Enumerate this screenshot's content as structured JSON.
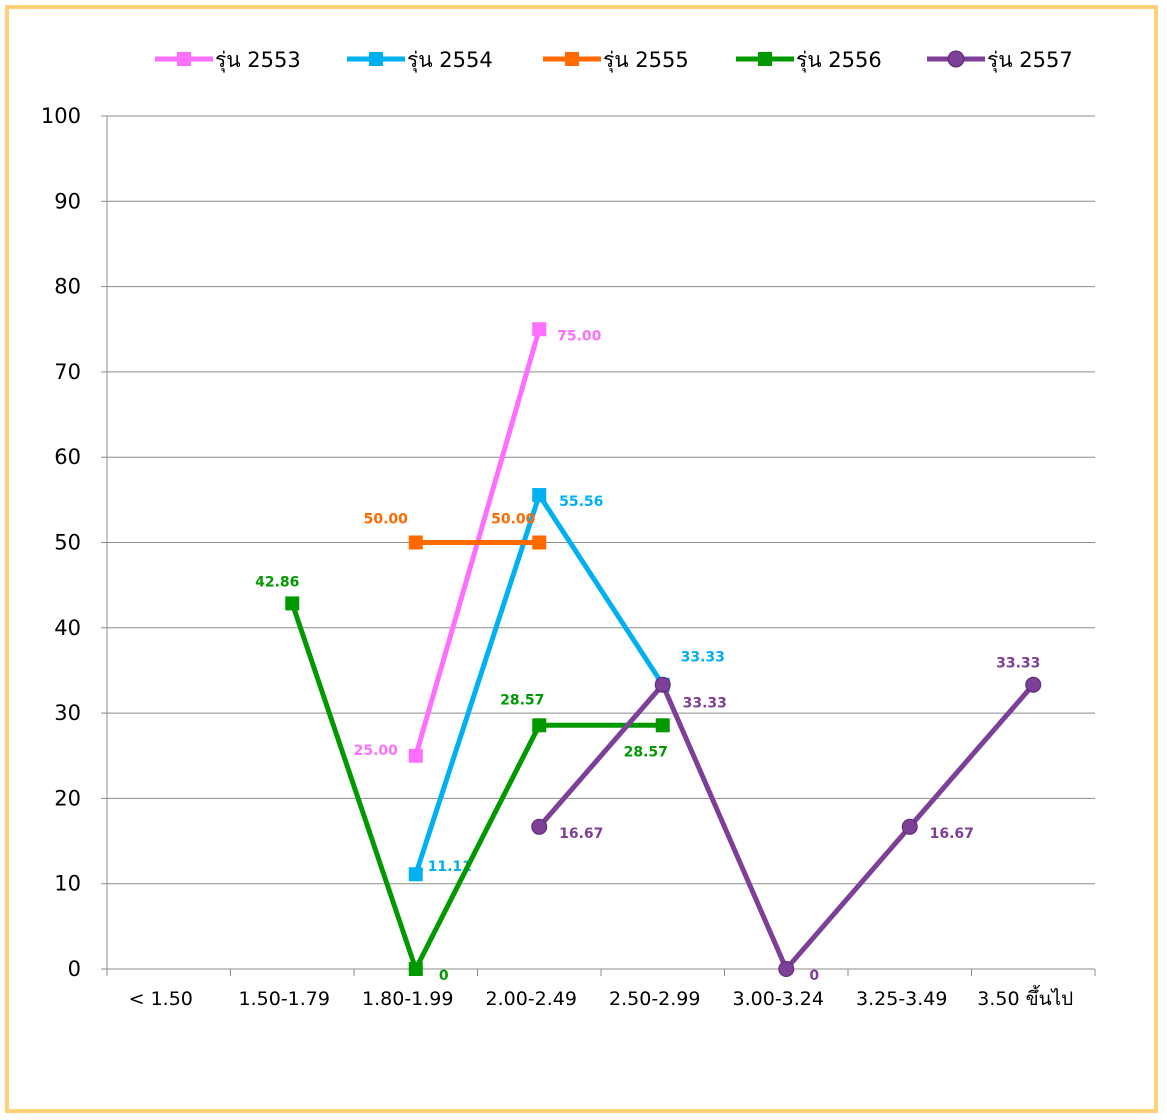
{
  "chart_data": {
    "type": "line",
    "categories": [
      "< 1.50",
      "1.50-1.79",
      "1.80-1.99",
      "2.00-2.49",
      "2.50-2.99",
      "3.00-3.24",
      "3.25-3.49",
      "3.50  ขึ้นไป"
    ],
    "ylim": [
      0,
      100
    ],
    "yticks": [
      0,
      10,
      20,
      30,
      40,
      50,
      60,
      70,
      80,
      90,
      100
    ],
    "grid": true,
    "legend_position": "top",
    "series": [
      {
        "name": "รุ่น 2553",
        "color": "#FF6FFF",
        "marker": "square",
        "values": [
          null,
          null,
          25.0,
          75.0,
          null,
          null,
          null,
          null
        ],
        "labels": [
          null,
          null,
          "25.00",
          "75.00",
          null,
          null,
          null,
          null
        ]
      },
      {
        "name": "รุ่น 2554",
        "color": "#00B0F0",
        "marker": "square",
        "values": [
          null,
          null,
          11.11,
          55.56,
          33.33,
          null,
          null,
          null
        ],
        "labels": [
          null,
          null,
          "11.11",
          "55.56",
          "33.33",
          null,
          null,
          null
        ]
      },
      {
        "name": "รุ่น 2555",
        "color": "#FF6A00",
        "marker": "square",
        "values": [
          null,
          null,
          50.0,
          50.0,
          null,
          null,
          null,
          null
        ],
        "labels": [
          null,
          null,
          "50.00",
          "50.00",
          null,
          null,
          null,
          null
        ]
      },
      {
        "name": "รุ่น 2556",
        "color": "#009A00",
        "marker": "square",
        "values": [
          null,
          42.86,
          0,
          28.57,
          28.57,
          null,
          null,
          null
        ],
        "labels": [
          null,
          "42.86",
          "0",
          "28.57",
          "28.57",
          null,
          null,
          null
        ]
      },
      {
        "name": "รุ่น 2557",
        "color": "#7E3F98",
        "marker": "circle",
        "values": [
          null,
          null,
          null,
          16.67,
          33.33,
          0,
          16.67,
          33.33
        ],
        "labels": [
          null,
          null,
          null,
          "16.67",
          "33.33",
          "0",
          "16.67",
          "33.33"
        ]
      }
    ]
  }
}
